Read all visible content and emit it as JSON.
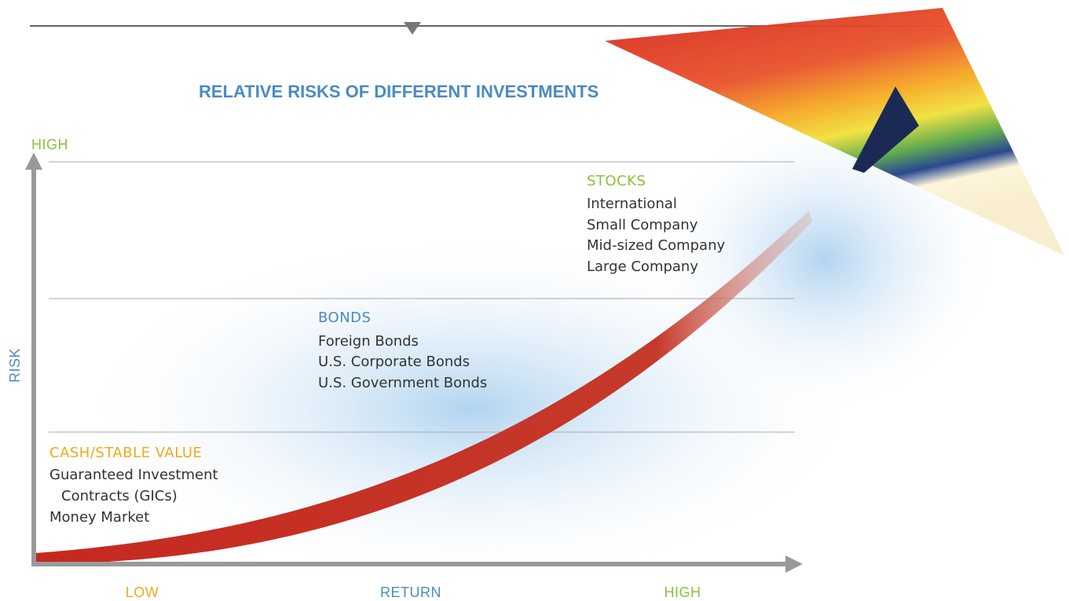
{
  "title": "RELATIVE RISKS OF DIFFERENT INVESTMENTS",
  "y_axis": {
    "high": "HIGH",
    "label": "RISK"
  },
  "x_axis": {
    "low": "LOW",
    "label": "RETURN",
    "high": "HIGH"
  },
  "groups": [
    {
      "name": "STOCKS",
      "items": [
        "International",
        "Small Company",
        "Mid-sized Company",
        "Large Company"
      ]
    },
    {
      "name": "BONDS",
      "items": [
        "Foreign Bonds",
        "U.S. Corporate Bonds",
        "U.S. Government Bonds"
      ]
    },
    {
      "name": "CASH/STABLE VALUE",
      "items": [
        "Guaranteed Investment",
        "Contracts (GICs)",
        "Money Market"
      ]
    }
  ]
}
